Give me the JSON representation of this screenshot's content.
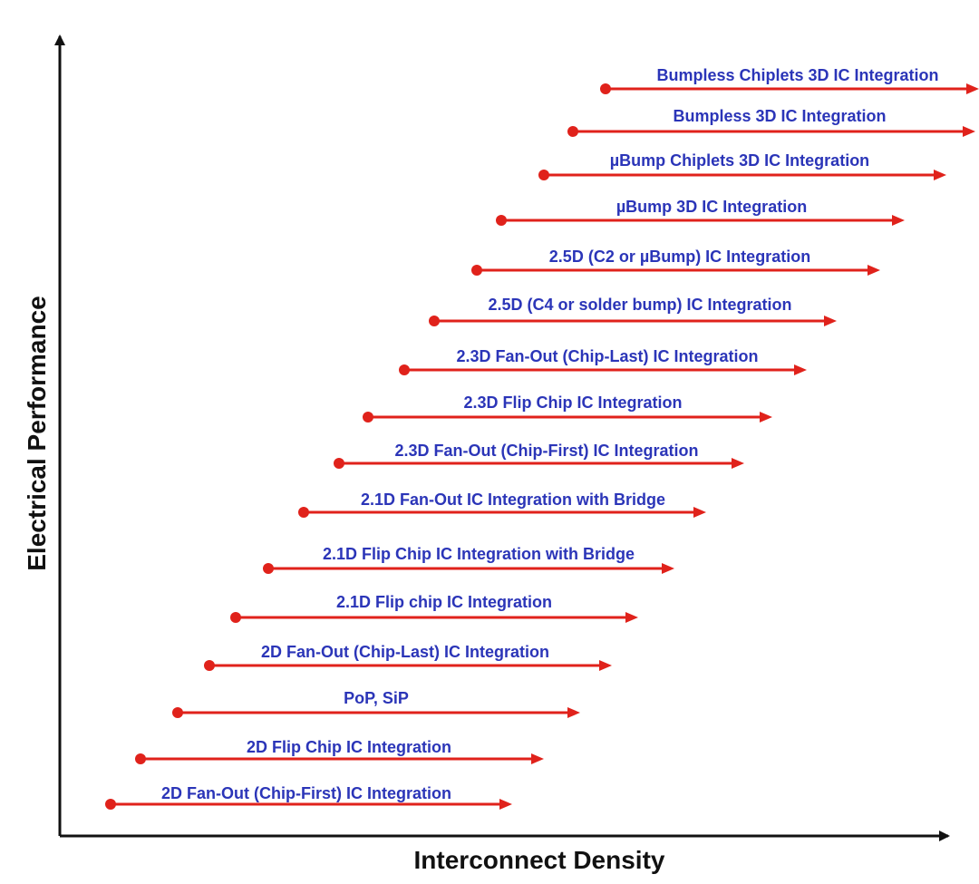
{
  "diagram": {
    "x_axis_label": "Interconnect Density",
    "y_axis_label": "Electrical Performance",
    "colors": {
      "arrow": "#e0221b",
      "text": "#2b35b8",
      "axis": "#111111"
    },
    "items": [
      {
        "label": "Bumpless Chiplets 3D IC Integration"
      },
      {
        "label": "Bumpless 3D IC Integration"
      },
      {
        "label": "µBump Chiplets 3D IC Integration"
      },
      {
        "label": "µBump 3D IC Integration"
      },
      {
        "label": "2.5D (C2 or µBump) IC Integration"
      },
      {
        "label": "2.5D (C4 or solder bump) IC Integration"
      },
      {
        "label": "2.3D Fan-Out (Chip-Last) IC Integration"
      },
      {
        "label": "2.3D Flip Chip IC Integration"
      },
      {
        "label": "2.3D Fan-Out (Chip-First) IC Integration"
      },
      {
        "label": "2.1D Fan-Out IC Integration with Bridge"
      },
      {
        "label": "2.1D Flip Chip IC Integration with Bridge"
      },
      {
        "label": "2.1D Flip chip IC Integration"
      },
      {
        "label": "2D Fan-Out (Chip-Last) IC Integration"
      },
      {
        "label": "PoP, SiP"
      },
      {
        "label": "2D Flip Chip IC Integration"
      },
      {
        "label": "2D Fan-Out (Chip-First) IC Integration"
      }
    ]
  }
}
